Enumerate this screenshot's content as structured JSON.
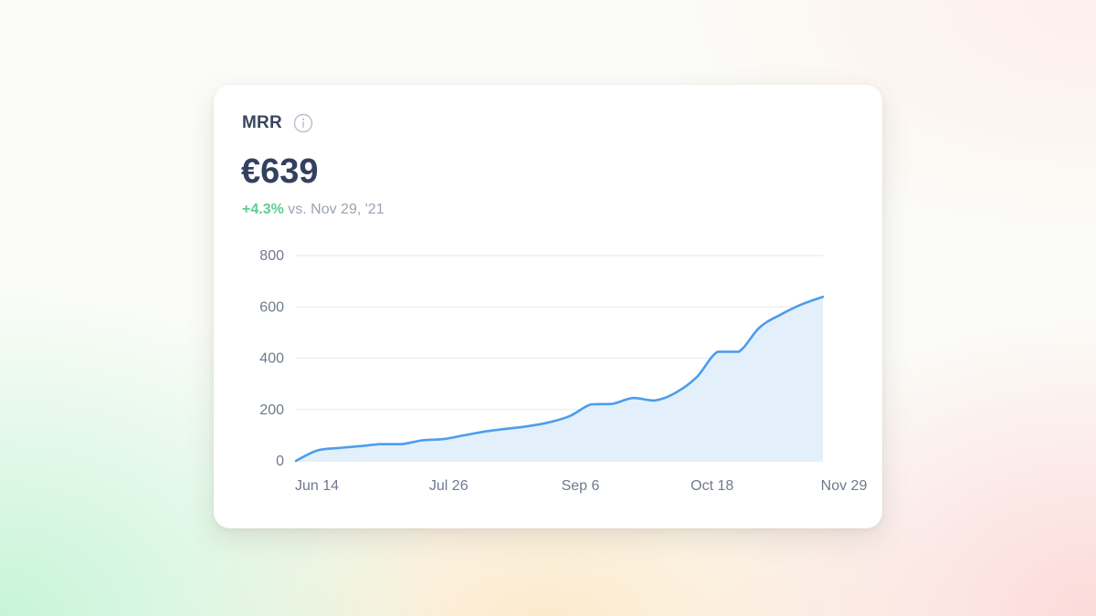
{
  "card": {
    "title": "MRR",
    "info_icon": "info-icon",
    "value": "€639",
    "delta": {
      "change": "+4.3%",
      "comparison": "vs. Nov 29, '21"
    }
  },
  "colors": {
    "line": "#4c9ded",
    "area": "#e3f0fc",
    "positive": "#5ccf8f",
    "title": "#334060"
  },
  "chart_data": {
    "type": "area",
    "x_tick_labels": [
      "Jun 14",
      "Jul 26",
      "Sep 6",
      "Oct 18",
      "Nov 29"
    ],
    "y_ticks": [
      0,
      200,
      400,
      600,
      800
    ],
    "ylim": [
      0,
      800
    ],
    "grid": "horizontal",
    "series": [
      {
        "values": [
          0,
          40,
          50,
          57,
          65,
          65,
          80,
          85,
          100,
          115,
          125,
          135,
          150,
          175,
          220,
          222,
          245,
          235,
          265,
          325,
          425,
          425,
          520,
          570,
          610,
          639
        ]
      }
    ]
  }
}
